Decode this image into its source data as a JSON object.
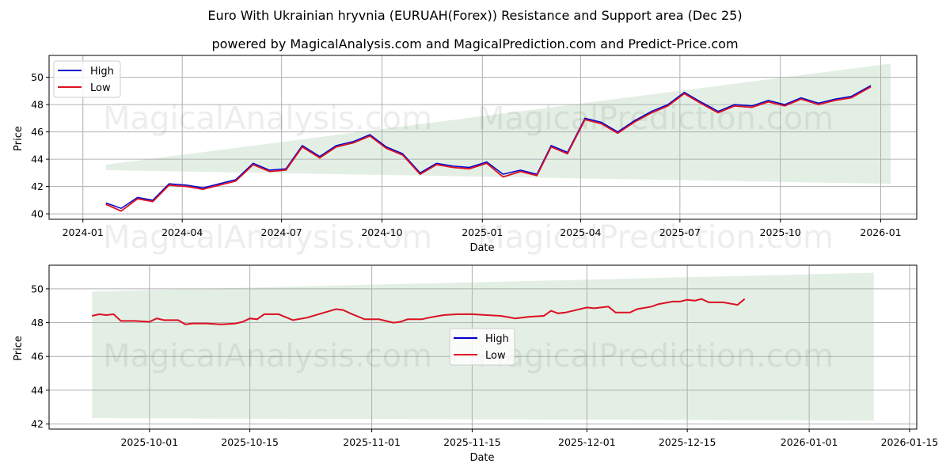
{
  "header": {
    "title": "Euro With Ukrainian hryvnia (EURUAH(Forex)) Resistance and Support area (Dec 25)",
    "subtitle": "powered by MagicalAnalysis.com and MagicalPrediction.com and Predict-Price.com"
  },
  "watermarks": [
    "MagicalAnalysis.com",
    "MagicalPrediction.com"
  ],
  "colors": {
    "high": "#0000cc",
    "low": "#dd1122",
    "band": "#d9eadb",
    "grid": "#b0b0b0"
  },
  "chart_data": [
    {
      "type": "line",
      "title": "Euro With Ukrainian hryvnia (EURUAH(Forex)) Resistance and Support area (Dec 25)",
      "xlabel": "Date",
      "ylabel": "Price",
      "ylim": [
        39.6,
        51.6
      ],
      "y_ticks": [
        "40",
        "42",
        "44",
        "46",
        "48",
        "50"
      ],
      "x_ticks": [
        "2024-01",
        "2024-04",
        "2024-07",
        "2024-10",
        "2025-01",
        "2025-04",
        "2025-07",
        "2025-10",
        "2026-01"
      ],
      "legend": [
        "High",
        "Low"
      ],
      "legend_position": "upper left",
      "grid": true,
      "x": [
        "2024-01-22",
        "2024-02-05",
        "2024-02-20",
        "2024-03-05",
        "2024-03-20",
        "2024-04-05",
        "2024-04-20",
        "2024-05-05",
        "2024-05-20",
        "2024-06-05",
        "2024-06-20",
        "2024-07-05",
        "2024-07-20",
        "2024-08-05",
        "2024-08-20",
        "2024-09-05",
        "2024-09-20",
        "2024-10-05",
        "2024-10-20",
        "2024-11-05",
        "2024-11-20",
        "2024-12-05",
        "2024-12-20",
        "2025-01-05",
        "2025-01-20",
        "2025-02-05",
        "2025-02-20",
        "2025-03-05",
        "2025-03-20",
        "2025-04-05",
        "2025-04-20",
        "2025-05-05",
        "2025-05-20",
        "2025-06-05",
        "2025-06-20",
        "2025-07-05",
        "2025-07-20",
        "2025-08-05",
        "2025-08-20",
        "2025-09-05",
        "2025-09-20",
        "2025-10-05",
        "2025-10-20",
        "2025-11-05",
        "2025-11-20",
        "2025-12-05",
        "2025-12-23"
      ],
      "series": [
        {
          "name": "High",
          "values": [
            40.8,
            40.4,
            41.2,
            41.0,
            42.2,
            42.1,
            41.9,
            42.2,
            42.5,
            43.7,
            43.2,
            43.3,
            45.0,
            44.2,
            45.0,
            45.3,
            45.8,
            44.9,
            44.4,
            43.0,
            43.7,
            43.5,
            43.4,
            43.8,
            42.9,
            43.2,
            42.9,
            45.0,
            44.5,
            47.0,
            46.7,
            46.0,
            46.8,
            47.5,
            48.0,
            48.9,
            48.2,
            47.5,
            48.0,
            47.9,
            48.3,
            48.0,
            48.5,
            48.1,
            48.4,
            48.6,
            49.4
          ]
        },
        {
          "name": "Low",
          "values": [
            40.7,
            40.2,
            41.1,
            40.9,
            42.1,
            42.0,
            41.8,
            42.1,
            42.4,
            43.6,
            43.1,
            43.2,
            44.9,
            44.1,
            44.9,
            45.2,
            45.7,
            44.8,
            44.3,
            42.9,
            43.6,
            43.4,
            43.3,
            43.7,
            42.7,
            43.1,
            42.8,
            44.9,
            44.4,
            46.9,
            46.6,
            45.9,
            46.7,
            47.4,
            47.9,
            48.8,
            48.1,
            47.4,
            47.9,
            47.8,
            48.2,
            47.9,
            48.4,
            48.0,
            48.3,
            48.5,
            49.3
          ]
        }
      ],
      "band": {
        "x_start": "2024-01-22",
        "x_end": "2026-01-10",
        "upper_start": 43.6,
        "upper_end": 51.0,
        "lower_start": 43.2,
        "lower_end": 42.2
      }
    },
    {
      "type": "line",
      "xlabel": "Date",
      "ylabel": "Price",
      "ylim": [
        41.7,
        51.4
      ],
      "y_ticks": [
        "42",
        "44",
        "46",
        "48",
        "50"
      ],
      "x_ticks": [
        "2025-10-01",
        "2025-10-15",
        "2025-11-01",
        "2025-11-15",
        "2025-12-01",
        "2025-12-15",
        "2026-01-01",
        "2026-01-15"
      ],
      "legend": [
        "High",
        "Low"
      ],
      "legend_position": "center",
      "grid": true,
      "x": [
        "2025-09-23",
        "2025-09-24",
        "2025-09-25",
        "2025-09-26",
        "2025-09-27",
        "2025-09-29",
        "2025-10-01",
        "2025-10-02",
        "2025-10-03",
        "2025-10-05",
        "2025-10-06",
        "2025-10-07",
        "2025-10-09",
        "2025-10-11",
        "2025-10-13",
        "2025-10-14",
        "2025-10-15",
        "2025-10-16",
        "2025-10-17",
        "2025-10-19",
        "2025-10-21",
        "2025-10-23",
        "2025-10-25",
        "2025-10-27",
        "2025-10-28",
        "2025-10-29",
        "2025-10-31",
        "2025-11-02",
        "2025-11-04",
        "2025-11-05",
        "2025-11-06",
        "2025-11-08",
        "2025-11-09",
        "2025-11-11",
        "2025-11-13",
        "2025-11-15",
        "2025-11-17",
        "2025-11-19",
        "2025-11-21",
        "2025-11-23",
        "2025-11-25",
        "2025-11-26",
        "2025-11-27",
        "2025-11-28",
        "2025-12-01",
        "2025-12-02",
        "2025-12-04",
        "2025-12-05",
        "2025-12-07",
        "2025-12-08",
        "2025-12-10",
        "2025-12-11",
        "2025-12-13",
        "2025-12-14",
        "2025-12-15",
        "2025-12-16",
        "2025-12-17",
        "2025-12-18",
        "2025-12-20",
        "2025-12-22",
        "2025-12-23"
      ],
      "series": [
        {
          "name": "High",
          "values": [
            48.4,
            48.5,
            48.45,
            48.5,
            48.1,
            48.1,
            48.05,
            48.25,
            48.15,
            48.15,
            47.9,
            47.95,
            47.95,
            47.9,
            47.95,
            48.05,
            48.25,
            48.2,
            48.5,
            48.5,
            48.15,
            48.3,
            48.55,
            48.8,
            48.75,
            48.55,
            48.2,
            48.2,
            48.0,
            48.05,
            48.2,
            48.2,
            48.3,
            48.45,
            48.5,
            48.5,
            48.45,
            48.4,
            48.25,
            48.35,
            48.4,
            48.7,
            48.55,
            48.6,
            48.9,
            48.85,
            48.95,
            48.6,
            48.6,
            48.8,
            48.95,
            49.1,
            49.25,
            49.25,
            49.35,
            49.3,
            49.4,
            49.2,
            49.2,
            49.05,
            49.4
          ]
        },
        {
          "name": "Low",
          "values": [
            48.4,
            48.5,
            48.45,
            48.5,
            48.1,
            48.1,
            48.05,
            48.25,
            48.15,
            48.15,
            47.9,
            47.95,
            47.95,
            47.9,
            47.95,
            48.05,
            48.25,
            48.2,
            48.5,
            48.5,
            48.15,
            48.3,
            48.55,
            48.8,
            48.75,
            48.55,
            48.2,
            48.2,
            48.0,
            48.05,
            48.2,
            48.2,
            48.3,
            48.45,
            48.5,
            48.5,
            48.45,
            48.4,
            48.25,
            48.35,
            48.4,
            48.7,
            48.55,
            48.6,
            48.9,
            48.85,
            48.95,
            48.6,
            48.6,
            48.8,
            48.95,
            49.1,
            49.25,
            49.25,
            49.35,
            49.3,
            49.4,
            49.2,
            49.2,
            49.05,
            49.4
          ]
        }
      ],
      "band": {
        "x_start": "2025-09-23",
        "x_end": "2026-01-10",
        "upper_start": 49.85,
        "upper_end": 50.95,
        "lower_start": 42.35,
        "lower_end": 42.2
      }
    }
  ]
}
